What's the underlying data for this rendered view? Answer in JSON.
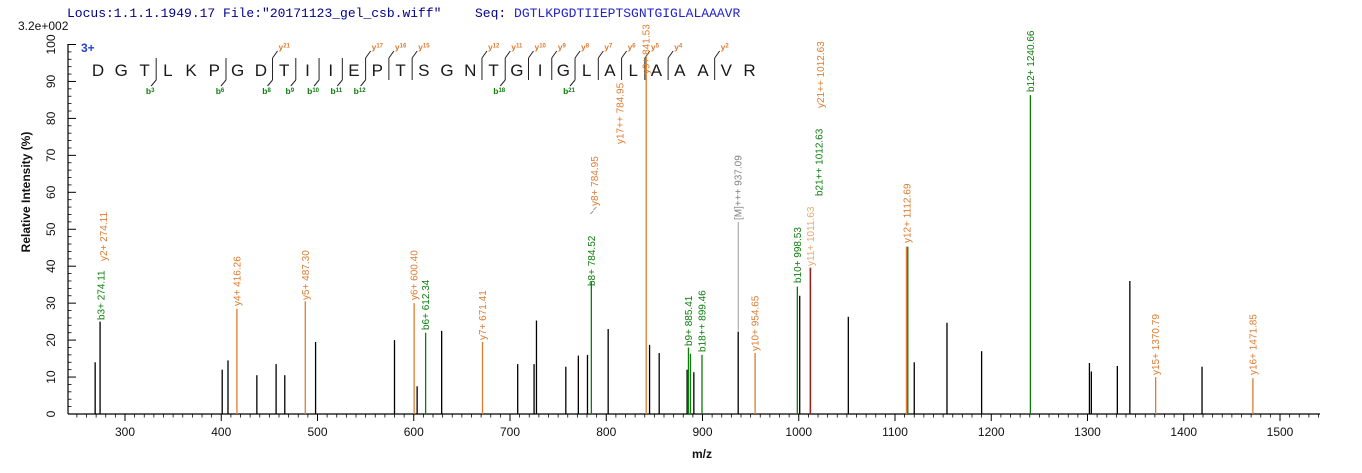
{
  "header": {
    "scale_label": "3.2e+002",
    "locus": "Locus:1.1.1.1949.17 File:\"20171123_gel_csb.wiff\"",
    "seq_label": "Seq:",
    "sequence": "DGTLKPGDTIIEPTSGNTGIGLALAAAVR",
    "charge": "3+"
  },
  "colors": {
    "y_ion": "#DE7B30",
    "y_ion_pale": "#E9A96D",
    "b_ion": "#0B7D0B",
    "precursor_label": "#808080",
    "peak": "#000000",
    "overlap": "#95251B",
    "locus_text": "#00008B",
    "sequence_text": "#2222CC",
    "charge_text": "#2244CC"
  },
  "peptide_display": {
    "residues": "DGTLKPGDTIIEPTSGNTGIGLALAAAVR",
    "markers": [
      {
        "pos": 3,
        "b": "b3"
      },
      {
        "pos": 6,
        "b": "b6"
      },
      {
        "pos": 8,
        "b": "b8",
        "y": "y21"
      },
      {
        "pos": 9,
        "b": "b9"
      },
      {
        "pos": 10,
        "b": "b10"
      },
      {
        "pos": 11,
        "b": "b11"
      },
      {
        "pos": 12,
        "b": "b12",
        "y": "y17"
      },
      {
        "pos": 13,
        "y": "y16"
      },
      {
        "pos": 14,
        "y": "y15"
      },
      {
        "pos": 17,
        "y": "y12"
      },
      {
        "pos": 18,
        "b": "b18",
        "y": "y11"
      },
      {
        "pos": 19,
        "y": "y10"
      },
      {
        "pos": 20,
        "y": "y9"
      },
      {
        "pos": 21,
        "b": "b21",
        "y": "y8"
      },
      {
        "pos": 22,
        "y": "y7"
      },
      {
        "pos": 23,
        "y": "y6"
      },
      {
        "pos": 24,
        "y": "y5"
      },
      {
        "pos": 25,
        "y": "y4"
      },
      {
        "pos": 27,
        "y": "y2"
      }
    ]
  },
  "axes": {
    "x_label": "m/z",
    "y_label": "Relative  Intensity (%)",
    "x_range": [
      241,
      1541
    ],
    "x_major_ticks": [
      300,
      400,
      500,
      600,
      700,
      800,
      900,
      1000,
      1100,
      1200,
      1300,
      1400,
      1500
    ],
    "x_minor_step": 10,
    "y_range": [
      0,
      100
    ],
    "y_major_ticks": [
      0,
      10,
      20,
      30,
      40,
      50,
      60,
      70,
      80,
      90,
      100
    ],
    "y_minor_step": 2
  },
  "chart_data": {
    "type": "bar",
    "description": "MS/MS peptide fragmentation stick spectrum",
    "xlabel": "m/z",
    "ylabel": "Relative Intensity (%)",
    "xlim": [
      241,
      1541
    ],
    "ylim": [
      0,
      100
    ],
    "peaks": [
      {
        "mz": 269.0,
        "intensity": 14.0
      },
      {
        "mz": 274.11,
        "intensity": 25.0,
        "labels": [
          {
            "text": "b3+ 274.11",
            "ion": "b",
            "dx": 4.5,
            "yb": 320
          },
          {
            "text": "y2+ 274.11",
            "ion": "y",
            "dx": 7,
            "yb": 261
          }
        ]
      },
      {
        "mz": 401.0,
        "intensity": 12.0
      },
      {
        "mz": 407.0,
        "intensity": 14.5
      },
      {
        "mz": 416.26,
        "intensity": 28.5,
        "color": "y",
        "labels": [
          {
            "text": "y4+ 416.26",
            "ion": "y",
            "dx": 3.5,
            "yb": 306
          }
        ]
      },
      {
        "mz": 437.0,
        "intensity": 10.5
      },
      {
        "mz": 457.0,
        "intensity": 13.5
      },
      {
        "mz": 466.0,
        "intensity": 10.5
      },
      {
        "mz": 487.3,
        "intensity": 30.5,
        "color": "y",
        "labels": [
          {
            "text": "y5+ 487.30",
            "ion": "y",
            "dx": 3.5,
            "yb": 300
          }
        ]
      },
      {
        "mz": 498.0,
        "intensity": 19.5
      },
      {
        "mz": 580.0,
        "intensity": 20.0
      },
      {
        "mz": 600.4,
        "intensity": 30.0,
        "color": "y",
        "labels": [
          {
            "text": "y6+ 600.40",
            "ion": "y",
            "dx": 3.5,
            "yb": 300
          }
        ]
      },
      {
        "mz": 603.5,
        "intensity": 7.5
      },
      {
        "mz": 612.34,
        "intensity": 22.0,
        "color": "b",
        "labels": [
          {
            "text": "b6+ 612.34",
            "ion": "b",
            "dx": 3.5,
            "yb": 330
          }
        ]
      },
      {
        "mz": 629.0,
        "intensity": 22.5
      },
      {
        "mz": 671.41,
        "intensity": 19.5,
        "color": "y",
        "labels": [
          {
            "text": "y7+ 671.41",
            "ion": "y",
            "dx": 3.5,
            "yb": 340
          }
        ]
      },
      {
        "mz": 708.0,
        "intensity": 13.5
      },
      {
        "mz": 725.0,
        "intensity": 13.5
      },
      {
        "mz": 727.5,
        "intensity": 25.3
      },
      {
        "mz": 758.0,
        "intensity": 12.8
      },
      {
        "mz": 771.0,
        "intensity": 15.8
      },
      {
        "mz": 780.5,
        "intensity": 16.0
      },
      {
        "mz": 784.52,
        "intensity": 35.7,
        "color": "b",
        "labels": [
          {
            "text": "b8+ 784.52",
            "ion": "b",
            "dx": 3.5,
            "yb": 286
          },
          {
            "text": "y8+ 784.95",
            "ion": "y",
            "dx": 6.5,
            "yb": 206,
            "dashes": true
          },
          {
            "text": "y17++ 784.95",
            "ion": "y",
            "dx": 32,
            "yb": 144
          }
        ]
      },
      {
        "mz": 802.0,
        "intensity": 23.0
      },
      {
        "mz": 841.53,
        "intensity": 97.0,
        "color": "y",
        "labels": [
          {
            "text": "y9+ 841.53",
            "ion": "y",
            "dx": 3.5,
            "yb": 74
          }
        ]
      },
      {
        "mz": 845.0,
        "intensity": 18.7
      },
      {
        "mz": 855.0,
        "intensity": 16.5
      },
      {
        "mz": 884.0,
        "intensity": 12.0
      },
      {
        "mz": 885.41,
        "intensity": 18.0,
        "color": "b",
        "labels": [
          {
            "text": "b9+ 885.41",
            "ion": "b",
            "dx": 3.5,
            "yb": 346
          }
        ]
      },
      {
        "mz": 887.5,
        "intensity": 16.3,
        "color": "b"
      },
      {
        "mz": 891.0,
        "intensity": 11.3
      },
      {
        "mz": 899.46,
        "intensity": 16.0,
        "color": "b",
        "labels": [
          {
            "text": "b18++ 899.46",
            "ion": "b",
            "dx": 3.5,
            "yb": 352
          }
        ]
      },
      {
        "mz": 937.09,
        "intensity": 22.3,
        "labels": [
          {
            "text": "[M]+++ 937.09",
            "ion": "M",
            "dx": 3.5,
            "yb": 220,
            "leader": true
          }
        ]
      },
      {
        "mz": 954.65,
        "intensity": 16.5,
        "color": "y",
        "labels": [
          {
            "text": "y10+ 954.65",
            "ion": "y",
            "dx": 3.5,
            "yb": 351
          }
        ]
      },
      {
        "mz": 998.53,
        "intensity": 34.5,
        "color": "b",
        "labels": [
          {
            "text": "b10+ 998.53",
            "ion": "b",
            "dx": 3.5,
            "yb": 283
          }
        ]
      },
      {
        "mz": 1001.0,
        "intensity": 32.0
      },
      {
        "mz": 1012.1,
        "intensity": 39.6,
        "color": "overlap",
        "labels": [
          {
            "text": "y11+ 1011.63",
            "ion": "y_pale",
            "dx": 3.5,
            "yb": 266
          },
          {
            "text": "b21++ 1012.63",
            "ion": "b",
            "dx": 12,
            "yb": 196
          },
          {
            "text": "y21++ 1012.63",
            "ion": "y",
            "dx": 13.5,
            "yb": 108
          }
        ]
      },
      {
        "mz": 1051.5,
        "intensity": 26.3
      },
      {
        "mz": 1111.9,
        "intensity": 45.3,
        "color": "y"
      },
      {
        "mz": 1113.3,
        "intensity": 45.3,
        "color": "b",
        "labels": [
          {
            "text": "y12+ 1112.69",
            "ion": "y",
            "dx": 2.9,
            "yb": 243
          }
        ]
      },
      {
        "mz": 1120.0,
        "intensity": 14.0
      },
      {
        "mz": 1154.0,
        "intensity": 24.7
      },
      {
        "mz": 1190.0,
        "intensity": 17.0
      },
      {
        "mz": 1240.66,
        "intensity": 86.3,
        "color": "b",
        "labels": [
          {
            "text": "b12+ 1240.66",
            "ion": "b",
            "dx": 3.5,
            "yb": 92
          }
        ]
      },
      {
        "mz": 1302.0,
        "intensity": 13.8
      },
      {
        "mz": 1304.0,
        "intensity": 11.5
      },
      {
        "mz": 1331.0,
        "intensity": 13.0
      },
      {
        "mz": 1344.0,
        "intensity": 36.0
      },
      {
        "mz": 1370.79,
        "intensity": 10.0,
        "color": "y",
        "labels": [
          {
            "text": "y15+ 1370.79",
            "ion": "y",
            "dx": 3.5,
            "yb": 375
          }
        ]
      },
      {
        "mz": 1419.0,
        "intensity": 12.8
      },
      {
        "mz": 1471.85,
        "intensity": 9.7,
        "color": "y",
        "labels": [
          {
            "text": "y16+ 1471.85",
            "ion": "y",
            "dx": 3.5,
            "yb": 375
          }
        ]
      }
    ]
  }
}
